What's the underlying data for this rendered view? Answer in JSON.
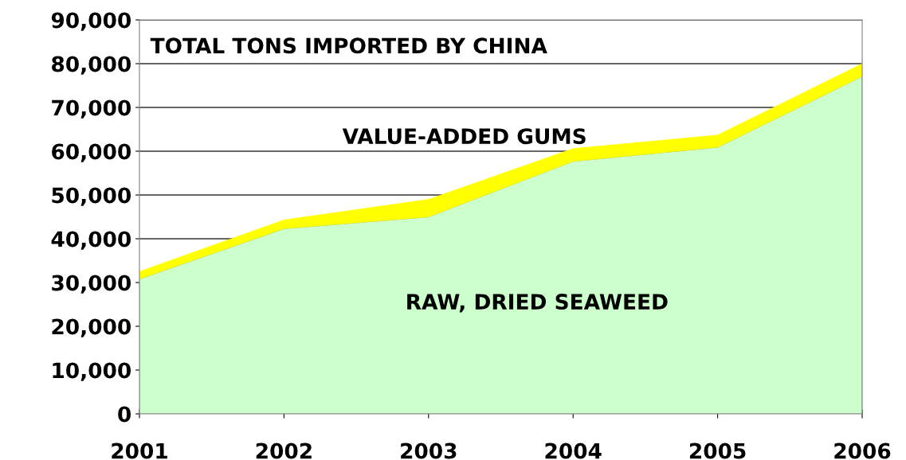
{
  "chart_data": {
    "type": "area",
    "stacked": true,
    "title": "TOTAL TONS IMPORTED BY CHINA",
    "categories": [
      "2001",
      "2002",
      "2003",
      "2004",
      "2005",
      "2006"
    ],
    "series": [
      {
        "name": "RAW, DRIED SEAWEED",
        "color": "#ccffcc",
        "values": [
          30800,
          42300,
          45000,
          57700,
          60900,
          77100
        ]
      },
      {
        "name": "VALUE-ADDED GUMS",
        "color": "#ffff00",
        "values": [
          1700,
          2000,
          4000,
          2900,
          2800,
          2900
        ]
      }
    ],
    "ylim": [
      0,
      90000
    ],
    "yticks": [
      0,
      {
        "value": 10000,
        "label": "10,000"
      },
      {
        "value": 20000,
        "label": "20,000"
      },
      {
        "value": 30000,
        "label": "30,000"
      },
      {
        "value": 40000,
        "label": "40,000"
      },
      {
        "value": 50000,
        "label": "50,000"
      },
      {
        "value": 60000,
        "label": "60,000"
      },
      {
        "value": 70000,
        "label": "70,000"
      },
      {
        "value": 80000,
        "label": "80,000"
      },
      {
        "value": 90000,
        "label": "90,000"
      }
    ],
    "grid": "y",
    "legend": false
  }
}
